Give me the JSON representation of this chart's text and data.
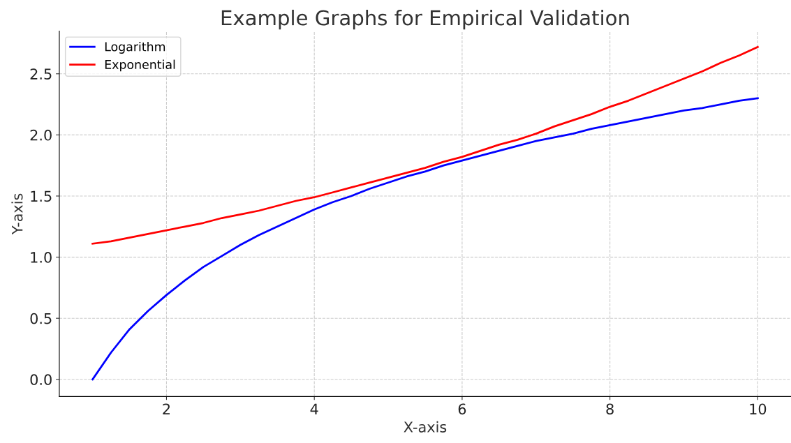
{
  "chart_data": {
    "type": "line",
    "title": "Example Graphs for Empirical Validation",
    "xlabel": "X-axis",
    "ylabel": "Y-axis",
    "x": [
      1,
      1.25,
      1.5,
      1.75,
      2,
      2.25,
      2.5,
      2.75,
      3,
      3.25,
      3.5,
      3.75,
      4,
      4.25,
      4.5,
      4.75,
      5,
      5.25,
      5.5,
      5.75,
      6,
      6.25,
      6.5,
      6.75,
      7,
      7.25,
      7.5,
      7.75,
      8,
      8.25,
      8.5,
      8.75,
      9,
      9.25,
      9.5,
      9.75,
      10
    ],
    "series": [
      {
        "name": "Logarithm",
        "color": "#0000ff",
        "values": [
          0,
          0.22,
          0.41,
          0.56,
          0.69,
          0.81,
          0.92,
          1.01,
          1.1,
          1.18,
          1.25,
          1.32,
          1.39,
          1.45,
          1.5,
          1.56,
          1.61,
          1.66,
          1.7,
          1.75,
          1.79,
          1.83,
          1.87,
          1.91,
          1.95,
          1.98,
          2.01,
          2.05,
          2.08,
          2.11,
          2.14,
          2.17,
          2.2,
          2.22,
          2.25,
          2.28,
          2.3
        ]
      },
      {
        "name": "Exponential",
        "color": "#ff0000",
        "values": [
          1.11,
          1.13,
          1.16,
          1.19,
          1.22,
          1.25,
          1.28,
          1.32,
          1.35,
          1.38,
          1.42,
          1.46,
          1.49,
          1.53,
          1.57,
          1.61,
          1.65,
          1.69,
          1.73,
          1.78,
          1.82,
          1.87,
          1.92,
          1.96,
          2.01,
          2.07,
          2.12,
          2.17,
          2.23,
          2.28,
          2.34,
          2.4,
          2.46,
          2.52,
          2.59,
          2.65,
          2.72
        ]
      }
    ],
    "xlim": [
      0.55,
      10.45
    ],
    "ylim": [
      -0.14,
      2.85
    ],
    "xticks": [
      2,
      4,
      6,
      8,
      10
    ],
    "yticks": [
      {
        "value": 0,
        "label": "0.0"
      },
      0.5,
      {
        "value": 1,
        "label": "1.0"
      },
      1.5,
      {
        "value": 2,
        "label": "2.0"
      },
      2.5
    ],
    "grid": true,
    "legend": "top left",
    "line_style": "solid",
    "marker": "none"
  }
}
